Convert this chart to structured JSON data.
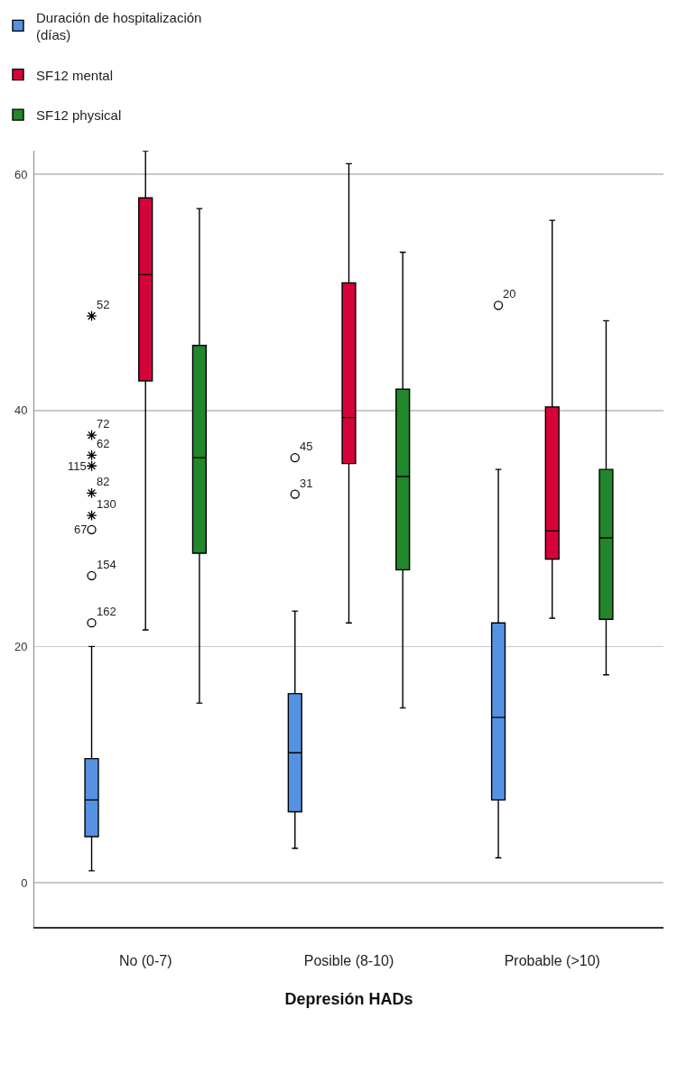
{
  "chart_data": {
    "type": "box",
    "categories": [
      "No (0-7)",
      "Posible (8-10)",
      "Probable (>10)"
    ],
    "xlabel": "Depresión HADs",
    "series": [
      {
        "name": "Duración de hospitalización (días)",
        "color": "#5592e2",
        "boxes": [
          {
            "low": 1.0,
            "q1": 3.9,
            "median": 7.0,
            "q3": 10.5,
            "high": 20.0,
            "outliers": [
              48.0,
              37.9,
              36.2,
              35.3,
              33.0,
              31.1,
              29.9,
              26.0,
              22.0
            ]
          },
          {
            "low": 2.9,
            "q1": 6.0,
            "median": 11.0,
            "q3": 16.0,
            "high": 23.0,
            "outliers": [
              36.0,
              32.9
            ]
          },
          {
            "low": 2.1,
            "q1": 7.0,
            "median": 14.0,
            "q3": 22.0,
            "high": 35.0,
            "outliers": [
              48.9
            ]
          }
        ]
      },
      {
        "name": "SF12 mental",
        "color": "#d4043a",
        "boxes": [
          {
            "low": 21.4,
            "q1": 42.5,
            "median": 51.5,
            "q3": 58.0,
            "high": 62.0
          },
          {
            "low": 22.0,
            "q1": 35.5,
            "median": 39.4,
            "q3": 50.8,
            "high": 60.9
          },
          {
            "low": 22.4,
            "q1": 27.4,
            "median": 29.8,
            "q3": 40.3,
            "high": 56.1
          }
        ]
      },
      {
        "name": "SF12 physical",
        "color": "#22862b",
        "boxes": [
          {
            "low": 15.2,
            "q1": 27.9,
            "median": 36.0,
            "q3": 45.5,
            "high": 57.1
          },
          {
            "low": 14.8,
            "q1": 26.5,
            "median": 34.4,
            "q3": 41.8,
            "high": 53.4
          },
          {
            "low": 17.6,
            "q1": 22.3,
            "median": 29.2,
            "q3": 35.0,
            "high": 47.6
          }
        ]
      }
    ],
    "ylim": [
      -3.75,
      62
    ],
    "yticks": [
      0,
      20,
      40,
      60
    ],
    "grid": "y",
    "legend": "top left",
    "annotations": [
      "52",
      "72",
      "62",
      "115",
      "82",
      "130",
      "67",
      "154",
      "162",
      "45",
      "31",
      "20"
    ]
  }
}
